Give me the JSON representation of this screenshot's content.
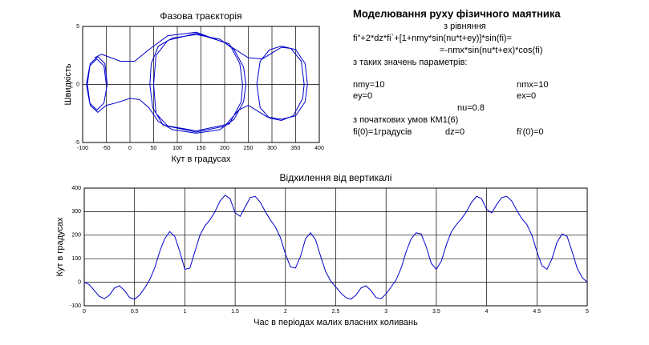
{
  "chart_data": [
    {
      "type": "line",
      "title": "Фазова траєкторія",
      "x_label": "Кут в градусах",
      "y_label": "Швидкість",
      "color": "#0000cc",
      "grid": true,
      "xlim": [
        -100,
        400
      ],
      "xticks": [
        -100,
        -50,
        0,
        50,
        100,
        150,
        200,
        250,
        300,
        350,
        400
      ],
      "ylim": [
        -5,
        5
      ],
      "yticks": [
        -5,
        0,
        5
      ],
      "x": [
        -50,
        -55,
        -70,
        -85,
        -92,
        -85,
        -70,
        -55,
        -48,
        -53,
        -68,
        -84,
        -90,
        -84,
        -68,
        -50,
        -30,
        0,
        20,
        40,
        60,
        90,
        140,
        190,
        220,
        240,
        245,
        240,
        220,
        190,
        140,
        90,
        60,
        45,
        42,
        48,
        70,
        140,
        210,
        235,
        238,
        232,
        210,
        140,
        80,
        55,
        50,
        55,
        80,
        140,
        200,
        230,
        250,
        270,
        290,
        320,
        350,
        370,
        375,
        370,
        350,
        320,
        295,
        275,
        268,
        275,
        295,
        320,
        345,
        365,
        368,
        362,
        340,
        320,
        300,
        280,
        250,
        200,
        140,
        80,
        40,
        10,
        -20,
        -40,
        -60,
        -75
      ],
      "values": [
        0,
        1.6,
        2.2,
        1.6,
        0,
        -1.6,
        -2.2,
        -1.6,
        0,
        1.8,
        2.4,
        1.8,
        0,
        -1.8,
        -2.4,
        -1.8,
        -1.6,
        -1.2,
        -1.3,
        -2,
        -3.2,
        -3.9,
        -4.2,
        -3.9,
        -3,
        -1.5,
        0,
        1.5,
        3,
        3.9,
        4.3,
        4,
        3.3,
        1.8,
        0,
        -2,
        -3.5,
        -4,
        -3.4,
        -1.5,
        0,
        1.8,
        3.5,
        4.4,
        3.8,
        2.5,
        0,
        -2.5,
        -3.6,
        -4.1,
        -3.6,
        -2.2,
        -1.8,
        -2.3,
        -2.8,
        -3,
        -2.7,
        -1.5,
        0,
        1.8,
        3,
        3.3,
        3,
        2,
        0,
        -2,
        -2.9,
        -3.1,
        -2.7,
        -1.2,
        0,
        2,
        3.1,
        3.2,
        2.7,
        2.2,
        2.3,
        3.6,
        4.5,
        4.2,
        3,
        2,
        2,
        2.3,
        2.6,
        2.3
      ]
    },
    {
      "type": "line",
      "title": "Відхилення від вертикалі",
      "x_label": "Час в періодах малих власних коливань",
      "y_label": "Кут в градусах",
      "color": "#0000cc",
      "grid": true,
      "xlim": [
        0,
        5
      ],
      "xticks": [
        0,
        0.5,
        1,
        1.5,
        2,
        2.5,
        3,
        3.5,
        4,
        4.5,
        5
      ],
      "ylim": [
        -100,
        400
      ],
      "yticks": [
        -100,
        0,
        100,
        200,
        300,
        400
      ],
      "x": [
        0,
        0.05,
        0.1,
        0.15,
        0.2,
        0.25,
        0.3,
        0.35,
        0.4,
        0.45,
        0.5,
        0.55,
        0.6,
        0.65,
        0.7,
        0.75,
        0.8,
        0.85,
        0.9,
        0.95,
        1,
        1.05,
        1.1,
        1.15,
        1.2,
        1.25,
        1.3,
        1.35,
        1.4,
        1.45,
        1.5,
        1.55,
        1.6,
        1.65,
        1.7,
        1.75,
        1.8,
        1.85,
        1.9,
        1.95,
        2,
        2.05,
        2.1,
        2.15,
        2.2,
        2.25,
        2.3,
        2.35,
        2.4,
        2.45,
        2.5,
        2.55,
        2.6,
        2.65,
        2.7,
        2.75,
        2.8,
        2.85,
        2.9,
        2.95,
        3,
        3.05,
        3.1,
        3.15,
        3.2,
        3.25,
        3.3,
        3.35,
        3.4,
        3.45,
        3.5,
        3.55,
        3.6,
        3.65,
        3.7,
        3.75,
        3.8,
        3.85,
        3.9,
        3.95,
        4,
        4.05,
        4.1,
        4.15,
        4.2,
        4.25,
        4.3,
        4.35,
        4.4,
        4.45,
        4.5,
        4.55,
        4.6,
        4.65,
        4.7,
        4.75,
        4.8,
        4.85,
        4.9,
        4.95,
        5
      ],
      "values": [
        0,
        -10,
        -35,
        -60,
        -70,
        -55,
        -25,
        -15,
        -35,
        -65,
        -72,
        -55,
        -25,
        10,
        60,
        130,
        185,
        215,
        195,
        130,
        55,
        60,
        130,
        200,
        240,
        265,
        300,
        345,
        370,
        355,
        295,
        280,
        320,
        360,
        365,
        340,
        300,
        265,
        235,
        190,
        120,
        65,
        60,
        110,
        185,
        210,
        180,
        110,
        45,
        5,
        -20,
        -45,
        -65,
        -72,
        -55,
        -25,
        -15,
        -35,
        -65,
        -70,
        -50,
        -20,
        10,
        60,
        130,
        185,
        210,
        205,
        150,
        80,
        55,
        90,
        160,
        215,
        245,
        270,
        300,
        340,
        365,
        355,
        310,
        295,
        330,
        360,
        365,
        345,
        305,
        270,
        245,
        200,
        130,
        70,
        55,
        100,
        170,
        205,
        195,
        130,
        60,
        20,
        0
      ]
    }
  ],
  "text": {
    "title": "Моделювання руху фізичного маятника",
    "lines": [
      "з рівняння",
      "fi\"+2*dz*fi`+[1+nmy*sin(nu*t+ey)]*sin(fi)=",
      "=-nmx*sin(nu*t+ex)*cos(fi)",
      "з таких значень параметрів:",
      "nmy=10",
      "nmx=10",
      "ey=0",
      "ex=0",
      "nu=0.8",
      "з початкових умов КМ1(6)",
      "fi(0)=1градусів",
      "dz=0",
      "fi'(0)=0"
    ]
  }
}
